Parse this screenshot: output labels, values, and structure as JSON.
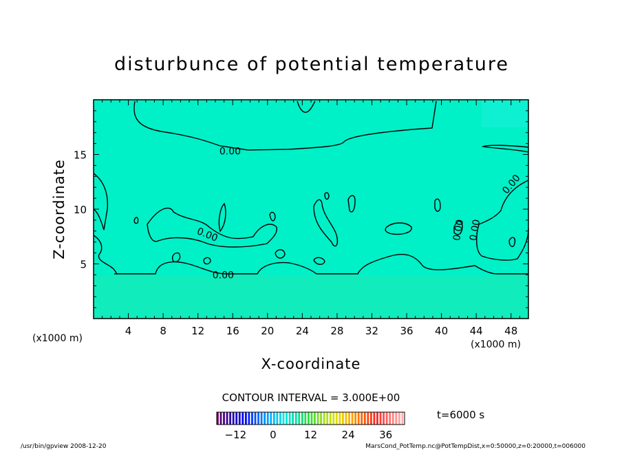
{
  "chart_data": {
    "type": "contour",
    "title": "disturbunce of potential temperature",
    "xlabel": "X-coordinate",
    "ylabel": "Z-coordinate",
    "x_unit_left": "(x1000 m)",
    "x_unit_right": "(x1000 m)",
    "xlim": [
      0,
      50
    ],
    "ylim": [
      0,
      20
    ],
    "xticks": [
      4,
      8,
      12,
      16,
      20,
      24,
      28,
      32,
      36,
      40,
      44,
      48
    ],
    "yticks": [
      5,
      10,
      15
    ],
    "field_color": "#00f0c8",
    "field_color_upper": "#19efd9",
    "field_color_lower": "#1de9b0",
    "contour_labels": [
      {
        "text": "0.00",
        "x": 15.7,
        "z": 15.3
      },
      {
        "text": "0.00",
        "x": 13.1,
        "z": 7.7,
        "angle": 22
      },
      {
        "text": "0.00",
        "x": 14.9,
        "z": 4.0
      },
      {
        "text": "0.00",
        "x": 48.0,
        "z": 12.3,
        "angle": -50
      },
      {
        "text": "0.00",
        "x": 43.8,
        "z": 8.1,
        "angle": -80
      },
      {
        "text": "0.00",
        "x": 41.9,
        "z": 8.1,
        "angle": -80
      }
    ],
    "contour_interval_text": "CONTOUR INTERVAL = 3.000E+00",
    "time_text": "t=6000 s",
    "colorbar": {
      "min": -18,
      "max": 42,
      "ticks": [
        -12,
        0,
        12,
        24,
        36
      ],
      "tick_labels": [
        "−12",
        "0",
        "12",
        "24",
        "36"
      ],
      "colors": [
        "#6a006a",
        "#2a00a8",
        "#0000ff",
        "#0060ff",
        "#00b0ff",
        "#00e8e0",
        "#00e0a0",
        "#30e030",
        "#a0e020",
        "#e0e000",
        "#ffb000",
        "#ff6000",
        "#ff2020",
        "#ff7070",
        "#ffb0b0"
      ]
    }
  },
  "footer": {
    "left": "/usr/bin/gpview   2008-12-20",
    "right": "MarsCond_PotTemp.nc@PotTempDist,x=0:50000,z=0:20000,t=006000"
  }
}
